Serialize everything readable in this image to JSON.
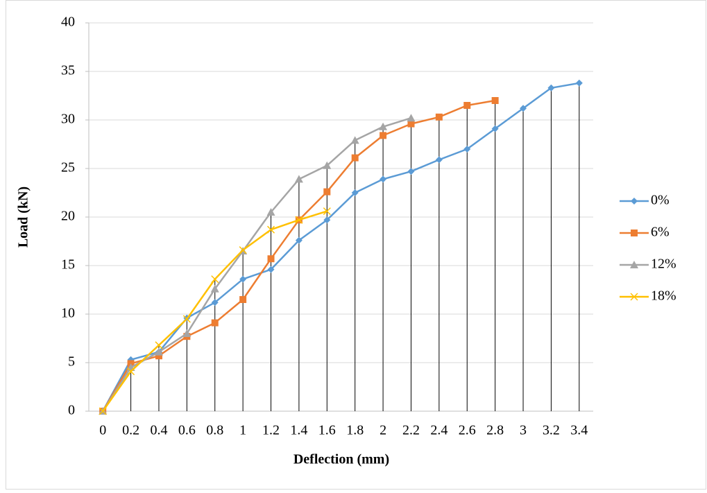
{
  "chart_data": {
    "type": "line",
    "x": [
      0,
      0.2,
      0.4,
      0.6,
      0.8,
      1,
      1.2,
      1.4,
      1.6,
      1.8,
      2,
      2.2,
      2.4,
      2.6,
      2.8,
      3,
      3.2,
      3.4
    ],
    "xlim": [
      -0.1,
      3.5
    ],
    "xticks": [
      0,
      0.2,
      0.4,
      0.6,
      0.8,
      1,
      1.2,
      1.4,
      1.6,
      1.8,
      2,
      2.2,
      2.4,
      2.6,
      2.8,
      3,
      3.2,
      3.4
    ],
    "ylim": [
      0,
      40
    ],
    "yticks": [
      0,
      5,
      10,
      15,
      20,
      25,
      30,
      35,
      40
    ],
    "x_label": "Deflection (mm)",
    "y_label": "Load (kN)",
    "grid": true,
    "drop_lines": true,
    "legend": "right",
    "series": [
      {
        "name": "0%",
        "color": "#5b9bd5",
        "marker": "diamond",
        "values": [
          0,
          5.3,
          6.1,
          9.6,
          11.2,
          13.6,
          14.6,
          17.6,
          19.7,
          22.5,
          23.9,
          24.7,
          25.9,
          27.0,
          29.1,
          31.2,
          33.3,
          33.8
        ]
      },
      {
        "name": "6%",
        "color": "#ed7d31",
        "marker": "square",
        "values": [
          0,
          4.9,
          5.7,
          7.7,
          9.1,
          11.5,
          15.7,
          19.7,
          22.6,
          26.1,
          28.4,
          29.6,
          30.3,
          31.5,
          32.0,
          null,
          null,
          null
        ]
      },
      {
        "name": "12%",
        "color": "#a5a5a5",
        "marker": "triangle",
        "values": [
          0,
          4.5,
          6.1,
          8.0,
          12.6,
          16.5,
          20.5,
          23.9,
          25.3,
          27.9,
          29.3,
          30.2,
          null,
          null,
          null,
          null,
          null,
          null
        ]
      },
      {
        "name": "18%",
        "color": "#ffc000",
        "marker": "x",
        "values": [
          0,
          4.1,
          6.8,
          9.5,
          13.6,
          16.6,
          18.7,
          19.7,
          20.6,
          null,
          null,
          null,
          null,
          null,
          null,
          null,
          null,
          null
        ]
      }
    ]
  }
}
